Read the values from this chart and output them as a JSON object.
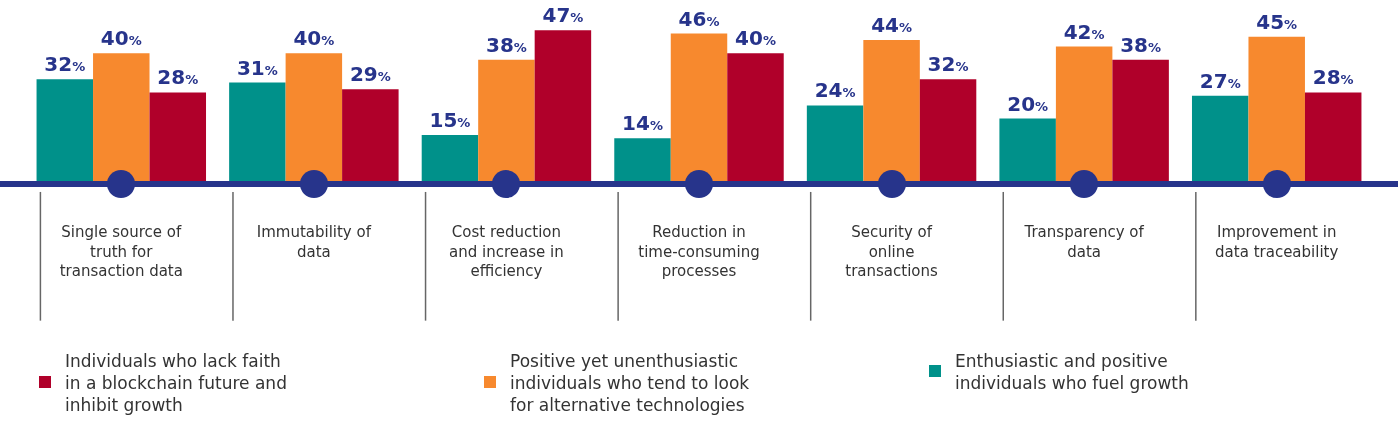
{
  "chart_data": {
    "type": "bar",
    "categories": [
      "Single source of truth for transaction data",
      "Immutability of data",
      "Cost reduction and increase in efficiency",
      "Reduction in time-consuming processes",
      "Security of online transactions",
      "Transparency of data",
      "Improvement in data traceability"
    ],
    "series": [
      {
        "name": "Enthusiastic and positive individuals who fuel growth",
        "color": "#00918a",
        "values": [
          32,
          31,
          15,
          14,
          24,
          20,
          27
        ],
        "value_labels": [
          "32%",
          "31%",
          "15%",
          "14%",
          "24%",
          "20%",
          "27%"
        ]
      },
      {
        "name": "Positive yet unenthusiastic individuals who tend to look for alternative technologies",
        "color": "#f7892e",
        "values": [
          40,
          40,
          38,
          46,
          44,
          42,
          45
        ],
        "value_labels": [
          "40%",
          "40%",
          "38%",
          "46%",
          "44%",
          "42%",
          "45%"
        ]
      },
      {
        "name": "Individuals who lack faith in a blockchain future and inhibit growth",
        "color": "#b0002a",
        "values": [
          28,
          29,
          47,
          40,
          32,
          38,
          28
        ],
        "value_labels": [
          "28%",
          "29%",
          "47%",
          "40%",
          "32%",
          "38%",
          "28%"
        ]
      }
    ],
    "tick_labels": "x",
    "grid": false,
    "legend": "bottom"
  }
}
